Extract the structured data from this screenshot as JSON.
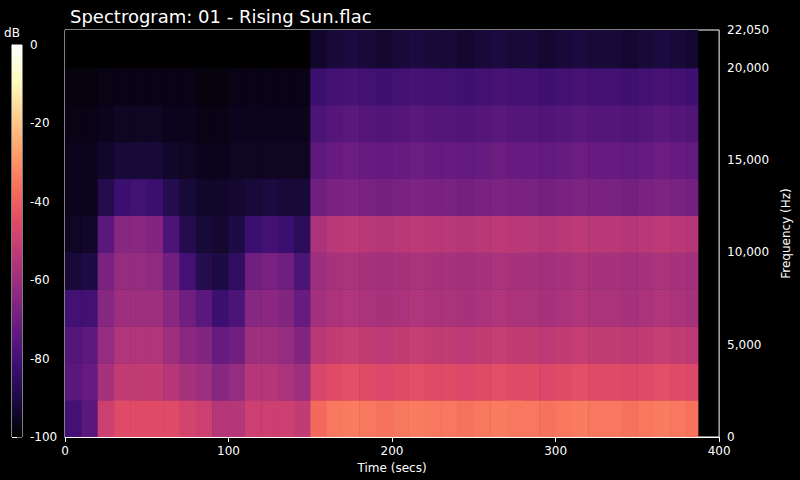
{
  "chart_data": {
    "type": "spectrogram",
    "title": "Spectrogram: 01 - Rising Sun.flac",
    "x_label": "Time (secs)",
    "y_label": "Frequency (Hz)",
    "xlim": [
      0,
      400
    ],
    "xticks": [
      0,
      100,
      200,
      300,
      400
    ],
    "ylim": [
      0,
      22050
    ],
    "yticks": [
      0,
      5000,
      10000,
      15000,
      20000
    ],
    "grid": false,
    "time_edges": [
      0,
      10,
      20,
      30,
      40,
      50,
      60,
      70,
      80,
      90,
      100,
      110,
      120,
      130,
      140,
      150,
      160,
      170,
      180,
      190,
      200,
      210,
      220,
      230,
      240,
      250,
      260,
      270,
      280,
      290,
      300,
      310,
      320,
      330,
      340,
      350,
      360,
      370,
      380,
      387
    ],
    "freq_edges": [
      0,
      2000,
      4000,
      6000,
      8000,
      10000,
      12000,
      14000,
      16000,
      18000,
      20000,
      22050
    ],
    "db": [
      [
        -80,
        -75,
        -50,
        -45,
        -45,
        -45,
        -45,
        -48,
        -50,
        -55,
        -55,
        -50,
        -50,
        -50,
        -52,
        -38,
        -35,
        -34,
        -35,
        -36,
        -35,
        -34,
        -35,
        -35,
        -36,
        -35,
        -34,
        -35,
        -35,
        -36,
        -35,
        -34,
        -35,
        -35,
        -36,
        -35,
        -34,
        -35,
        -36
      ],
      [
        -75,
        -72,
        -58,
        -52,
        -52,
        -52,
        -55,
        -58,
        -60,
        -65,
        -62,
        -55,
        -55,
        -57,
        -60,
        -47,
        -45,
        -44,
        -45,
        -46,
        -45,
        -44,
        -45,
        -45,
        -46,
        -45,
        -44,
        -45,
        -45,
        -46,
        -45,
        -44,
        -45,
        -45,
        -46,
        -45,
        -44,
        -45,
        -46
      ],
      [
        -76,
        -74,
        -62,
        -56,
        -56,
        -56,
        -60,
        -64,
        -66,
        -72,
        -70,
        -60,
        -60,
        -62,
        -66,
        -54,
        -52,
        -51,
        -52,
        -53,
        -52,
        -51,
        -52,
        -52,
        -53,
        -52,
        -51,
        -52,
        -52,
        -53,
        -52,
        -51,
        -52,
        -52,
        -53,
        -52,
        -51,
        -52,
        -53
      ],
      [
        -80,
        -80,
        -65,
        -60,
        -60,
        -60,
        -64,
        -70,
        -75,
        -82,
        -78,
        -65,
        -64,
        -66,
        -72,
        -59,
        -57,
        -56,
        -57,
        -58,
        -57,
        -56,
        -57,
        -57,
        -58,
        -57,
        -56,
        -57,
        -57,
        -58,
        -57,
        -56,
        -57,
        -57,
        -58,
        -57,
        -56,
        -57,
        -58
      ],
      [
        -92,
        -90,
        -68,
        -62,
        -62,
        -63,
        -70,
        -80,
        -88,
        -90,
        -85,
        -70,
        -68,
        -70,
        -78,
        -60,
        -58,
        -57,
        -58,
        -59,
        -58,
        -57,
        -58,
        -58,
        -59,
        -58,
        -57,
        -58,
        -58,
        -59,
        -58,
        -57,
        -58,
        -58,
        -59,
        -58,
        -57,
        -58,
        -59
      ],
      [
        -95,
        -94,
        -75,
        -65,
        -64,
        -66,
        -78,
        -88,
        -92,
        -93,
        -90,
        -82,
        -80,
        -82,
        -86,
        -57,
        -54,
        -53,
        -54,
        -55,
        -54,
        -53,
        -54,
        -54,
        -55,
        -54,
        -53,
        -54,
        -54,
        -55,
        -54,
        -53,
        -54,
        -54,
        -55,
        -54,
        -53,
        -54,
        -55
      ],
      [
        -96,
        -96,
        -88,
        -82,
        -80,
        -82,
        -88,
        -92,
        -94,
        -94,
        -93,
        -92,
        -91,
        -92,
        -92,
        -70,
        -68,
        -67,
        -68,
        -69,
        -68,
        -67,
        -68,
        -68,
        -69,
        -68,
        -67,
        -68,
        -68,
        -69,
        -68,
        -67,
        -68,
        -68,
        -69,
        -68,
        -67,
        -68,
        -69
      ],
      [
        -96,
        -96,
        -94,
        -92,
        -92,
        -92,
        -94,
        -95,
        -96,
        -96,
        -95,
        -95,
        -95,
        -95,
        -95,
        -74,
        -72,
        -71,
        -72,
        -73,
        -72,
        -71,
        -72,
        -72,
        -73,
        -72,
        -71,
        -72,
        -72,
        -73,
        -72,
        -71,
        -72,
        -72,
        -73,
        -72,
        -71,
        -72,
        -73
      ],
      [
        -97,
        -97,
        -96,
        -95,
        -95,
        -95,
        -96,
        -96,
        -97,
        -97,
        -96,
        -96,
        -96,
        -96,
        -96,
        -78,
        -76,
        -75,
        -76,
        -77,
        -76,
        -75,
        -76,
        -76,
        -77,
        -76,
        -75,
        -76,
        -76,
        -77,
        -76,
        -75,
        -76,
        -76,
        -77,
        -76,
        -75,
        -76,
        -77
      ],
      [
        -98,
        -98,
        -97,
        -97,
        -97,
        -97,
        -97,
        -97,
        -98,
        -98,
        -97,
        -97,
        -97,
        -97,
        -97,
        -82,
        -80,
        -79,
        -80,
        -81,
        -80,
        -79,
        -80,
        -80,
        -81,
        -80,
        -79,
        -80,
        -80,
        -81,
        -80,
        -79,
        -80,
        -80,
        -81,
        -80,
        -79,
        -80,
        -81
      ],
      [
        -100,
        -100,
        -100,
        -100,
        -100,
        -100,
        -100,
        -100,
        -100,
        -100,
        -100,
        -100,
        -100,
        -100,
        -100,
        -94,
        -92,
        -91,
        -92,
        -93,
        -92,
        -91,
        -92,
        -92,
        -93,
        -92,
        -91,
        -92,
        -92,
        -93,
        -92,
        -91,
        -92,
        -92,
        -93,
        -92,
        -91,
        -92,
        -93
      ]
    ],
    "colorbar": {
      "label": "dB",
      "range": [
        -100,
        0
      ],
      "ticks": [
        0,
        -20,
        -40,
        -60,
        -80,
        -100
      ]
    }
  }
}
